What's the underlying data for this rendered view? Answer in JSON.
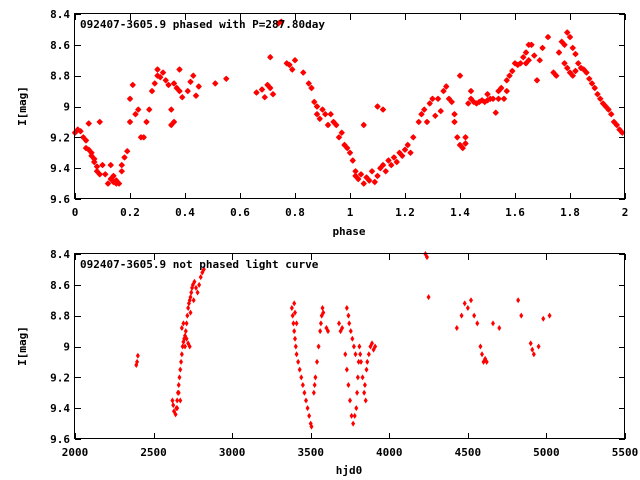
{
  "chart_data": [
    {
      "type": "scatter",
      "title": "092407-3605.9 phased with P=287.80day",
      "xlabel": "phase",
      "ylabel": "I[mag]",
      "xlim": [
        0,
        2
      ],
      "ylim": [
        8.4,
        9.6
      ],
      "y_inverted": true,
      "xticks": [
        "0",
        "0.2",
        "0.4",
        "0.6",
        "0.8",
        "1",
        "1.2",
        "1.4",
        "1.6",
        "1.8",
        "2"
      ],
      "yticks": [
        "8.4",
        "8.6",
        "8.8",
        "9",
        "9.2",
        "9.4",
        "9.6"
      ],
      "marker_color": "#ff0000",
      "marker": "star",
      "points": [
        [
          0.0,
          9.17
        ],
        [
          0.01,
          9.15
        ],
        [
          0.02,
          9.16
        ],
        [
          0.03,
          9.2
        ],
        [
          0.04,
          9.22
        ],
        [
          0.04,
          9.27
        ],
        [
          0.05,
          9.28
        ],
        [
          0.06,
          9.3
        ],
        [
          0.06,
          9.32
        ],
        [
          0.07,
          9.34
        ],
        [
          0.07,
          9.36
        ],
        [
          0.08,
          9.39
        ],
        [
          0.08,
          9.42
        ],
        [
          0.09,
          9.44
        ],
        [
          0.1,
          9.38
        ],
        [
          0.11,
          9.44
        ],
        [
          0.12,
          9.5
        ],
        [
          0.13,
          9.47
        ],
        [
          0.14,
          9.49
        ],
        [
          0.15,
          9.48
        ],
        [
          0.16,
          9.5
        ],
        [
          0.17,
          9.42
        ],
        [
          0.17,
          9.38
        ],
        [
          0.18,
          9.33
        ],
        [
          0.19,
          9.29
        ],
        [
          0.2,
          9.1
        ],
        [
          0.2,
          8.95
        ],
        [
          0.21,
          8.86
        ],
        [
          0.22,
          9.05
        ],
        [
          0.23,
          9.02
        ],
        [
          0.24,
          9.2
        ],
        [
          0.25,
          9.2
        ],
        [
          0.26,
          9.1
        ],
        [
          0.27,
          9.02
        ],
        [
          0.28,
          8.9
        ],
        [
          0.29,
          8.85
        ],
        [
          0.3,
          8.8
        ],
        [
          0.3,
          8.76
        ],
        [
          0.31,
          8.81
        ],
        [
          0.32,
          8.78
        ],
        [
          0.33,
          8.83
        ],
        [
          0.34,
          8.86
        ],
        [
          0.35,
          9.02
        ],
        [
          0.35,
          9.12
        ],
        [
          0.36,
          9.1
        ],
        [
          0.36,
          8.85
        ],
        [
          0.37,
          8.88
        ],
        [
          0.38,
          8.76
        ],
        [
          0.38,
          8.9
        ],
        [
          0.39,
          8.94
        ],
        [
          0.43,
          8.8
        ],
        [
          0.44,
          8.93
        ],
        [
          0.45,
          8.87
        ],
        [
          0.51,
          8.85
        ],
        [
          0.55,
          8.82
        ],
        [
          0.66,
          8.91
        ],
        [
          0.68,
          8.89
        ],
        [
          0.69,
          8.94
        ],
        [
          0.7,
          8.86
        ],
        [
          0.71,
          8.88
        ],
        [
          0.72,
          8.92
        ],
        [
          0.71,
          8.68
        ],
        [
          0.74,
          8.46
        ],
        [
          0.75,
          8.45
        ],
        [
          0.77,
          8.72
        ],
        [
          0.78,
          8.73
        ],
        [
          0.79,
          8.76
        ],
        [
          0.8,
          8.7
        ],
        [
          0.83,
          8.78
        ],
        [
          0.85,
          8.85
        ],
        [
          0.86,
          8.88
        ],
        [
          0.87,
          8.97
        ],
        [
          0.88,
          9.0
        ],
        [
          0.88,
          9.05
        ],
        [
          0.89,
          9.08
        ],
        [
          0.9,
          9.02
        ],
        [
          0.91,
          9.05
        ],
        [
          0.92,
          9.12
        ],
        [
          0.93,
          9.05
        ],
        [
          0.94,
          9.1
        ],
        [
          0.95,
          9.12
        ],
        [
          0.96,
          9.2
        ],
        [
          0.97,
          9.17
        ],
        [
          0.98,
          9.25
        ],
        [
          0.99,
          9.27
        ],
        [
          1.0,
          9.3
        ],
        [
          1.01,
          9.35
        ],
        [
          1.02,
          9.42
        ],
        [
          1.02,
          9.45
        ],
        [
          1.03,
          9.47
        ],
        [
          1.04,
          9.44
        ],
        [
          1.05,
          9.5
        ],
        [
          1.06,
          9.46
        ],
        [
          1.07,
          9.48
        ],
        [
          1.08,
          9.42
        ],
        [
          1.09,
          9.49
        ],
        [
          1.1,
          9.45
        ],
        [
          1.11,
          9.4
        ],
        [
          1.12,
          9.38
        ],
        [
          1.13,
          9.42
        ],
        [
          1.14,
          9.35
        ],
        [
          1.15,
          9.38
        ],
        [
          1.16,
          9.33
        ],
        [
          1.17,
          9.36
        ],
        [
          1.18,
          9.3
        ],
        [
          1.19,
          9.32
        ],
        [
          1.2,
          9.28
        ],
        [
          1.21,
          9.25
        ],
        [
          1.22,
          9.3
        ],
        [
          1.23,
          9.2
        ],
        [
          1.05,
          9.12
        ],
        [
          1.1,
          9.0
        ],
        [
          1.12,
          9.02
        ],
        [
          1.25,
          9.1
        ],
        [
          1.26,
          9.05
        ],
        [
          1.27,
          9.02
        ],
        [
          1.28,
          9.1
        ],
        [
          1.29,
          8.98
        ],
        [
          1.3,
          8.95
        ],
        [
          1.31,
          9.06
        ],
        [
          1.32,
          8.95
        ],
        [
          1.33,
          9.03
        ],
        [
          1.34,
          8.9
        ],
        [
          1.35,
          8.87
        ],
        [
          1.36,
          8.95
        ],
        [
          1.37,
          8.97
        ],
        [
          1.38,
          9.05
        ],
        [
          1.39,
          9.2
        ],
        [
          1.4,
          9.25
        ],
        [
          1.41,
          9.27
        ],
        [
          1.42,
          9.24
        ],
        [
          1.42,
          9.2
        ],
        [
          1.43,
          8.98
        ],
        [
          1.44,
          8.95
        ],
        [
          1.45,
          8.97
        ],
        [
          1.46,
          8.98
        ],
        [
          1.47,
          8.97
        ],
        [
          1.48,
          8.96
        ],
        [
          1.49,
          8.97
        ],
        [
          1.5,
          8.96
        ],
        [
          1.38,
          9.1
        ],
        [
          1.4,
          8.8
        ],
        [
          1.44,
          8.9
        ],
        [
          1.5,
          8.92
        ],
        [
          1.51,
          8.95
        ],
        [
          1.52,
          8.95
        ],
        [
          1.53,
          9.04
        ],
        [
          1.54,
          8.95
        ],
        [
          1.54,
          8.9
        ],
        [
          1.55,
          8.88
        ],
        [
          1.56,
          8.95
        ],
        [
          1.57,
          8.9
        ],
        [
          1.57,
          8.83
        ],
        [
          1.58,
          8.8
        ],
        [
          1.59,
          8.77
        ],
        [
          1.6,
          8.72
        ],
        [
          1.61,
          8.73
        ],
        [
          1.62,
          8.72
        ],
        [
          1.63,
          8.68
        ],
        [
          1.64,
          8.72
        ],
        [
          1.65,
          8.7
        ],
        [
          1.66,
          8.6
        ],
        [
          1.67,
          8.67
        ],
        [
          1.68,
          8.83
        ],
        [
          1.65,
          8.6
        ],
        [
          1.64,
          8.65
        ],
        [
          1.69,
          8.7
        ],
        [
          1.7,
          8.62
        ],
        [
          1.72,
          8.55
        ],
        [
          1.77,
          8.58
        ],
        [
          1.78,
          8.6
        ],
        [
          1.79,
          8.52
        ],
        [
          1.8,
          8.55
        ],
        [
          1.81,
          8.62
        ],
        [
          1.82,
          8.66
        ],
        [
          1.83,
          8.72
        ],
        [
          1.84,
          8.75
        ],
        [
          1.85,
          8.76
        ],
        [
          1.86,
          8.78
        ],
        [
          1.87,
          8.82
        ],
        [
          1.88,
          8.85
        ],
        [
          1.89,
          8.88
        ],
        [
          1.9,
          8.92
        ],
        [
          1.91,
          8.95
        ],
        [
          1.92,
          8.98
        ],
        [
          1.93,
          9.0
        ],
        [
          1.94,
          9.02
        ],
        [
          1.95,
          9.05
        ],
        [
          1.96,
          9.1
        ],
        [
          1.97,
          9.12
        ],
        [
          1.98,
          9.15
        ],
        [
          1.99,
          9.17
        ],
        [
          1.78,
          8.72
        ],
        [
          1.79,
          8.75
        ],
        [
          1.8,
          8.78
        ],
        [
          1.81,
          8.8
        ],
        [
          1.82,
          8.77
        ],
        [
          1.74,
          8.78
        ],
        [
          1.75,
          8.8
        ],
        [
          1.76,
          8.65
        ],
        [
          0.13,
          9.38
        ],
        [
          0.09,
          9.1
        ],
        [
          0.14,
          9.45
        ],
        [
          0.15,
          9.5
        ],
        [
          0.05,
          9.11
        ],
        [
          0.41,
          8.9
        ],
        [
          0.42,
          8.84
        ]
      ]
    },
    {
      "type": "scatter",
      "title": "092407-3605.9 not phased light curve",
      "xlabel": "hjd0",
      "ylabel": "I[mag]",
      "xlim": [
        2000,
        5500
      ],
      "ylim": [
        8.4,
        9.6
      ],
      "y_inverted": true,
      "xticks": [
        "2000",
        "2500",
        "3000",
        "3500",
        "4000",
        "4500",
        "5000",
        "5500"
      ],
      "yticks": [
        "8.4",
        "8.6",
        "8.8",
        "9",
        "9.2",
        "9.4",
        "9.6"
      ],
      "marker_color": "#ff0000",
      "marker": "diamond",
      "points": [
        [
          2390,
          9.12
        ],
        [
          2395,
          9.1
        ],
        [
          2400,
          9.06
        ],
        [
          2620,
          9.35
        ],
        [
          2625,
          9.38
        ],
        [
          2630,
          9.42
        ],
        [
          2640,
          9.44
        ],
        [
          2645,
          9.4
        ],
        [
          2650,
          9.35
        ],
        [
          2655,
          9.3
        ],
        [
          2660,
          9.25
        ],
        [
          2665,
          9.2
        ],
        [
          2670,
          9.15
        ],
        [
          2675,
          9.1
        ],
        [
          2680,
          9.05
        ],
        [
          2685,
          9.0
        ],
        [
          2690,
          8.97
        ],
        [
          2695,
          8.95
        ],
        [
          2700,
          8.93
        ],
        [
          2705,
          8.9
        ],
        [
          2710,
          8.85
        ],
        [
          2715,
          8.8
        ],
        [
          2720,
          8.75
        ],
        [
          2725,
          8.72
        ],
        [
          2730,
          8.7
        ],
        [
          2735,
          8.68
        ],
        [
          2740,
          8.65
        ],
        [
          2745,
          8.62
        ],
        [
          2750,
          8.6
        ],
        [
          2760,
          8.58
        ],
        [
          2770,
          8.62
        ],
        [
          2780,
          8.65
        ],
        [
          2790,
          8.6
        ],
        [
          2800,
          8.55
        ],
        [
          2810,
          8.52
        ],
        [
          2820,
          8.5
        ],
        [
          2700,
          9.0
        ],
        [
          2710,
          8.95
        ],
        [
          2720,
          8.98
        ],
        [
          2730,
          9.0
        ],
        [
          2690,
          8.85
        ],
        [
          2680,
          8.88
        ],
        [
          2660,
          9.3
        ],
        [
          2650,
          9.4
        ],
        [
          2670,
          9.35
        ],
        [
          2735,
          8.78
        ],
        [
          2755,
          8.7
        ],
        [
          3380,
          8.75
        ],
        [
          3385,
          8.8
        ],
        [
          3390,
          8.85
        ],
        [
          3395,
          8.9
        ],
        [
          3400,
          8.95
        ],
        [
          3405,
          9.0
        ],
        [
          3410,
          9.05
        ],
        [
          3420,
          9.1
        ],
        [
          3430,
          9.15
        ],
        [
          3440,
          9.2
        ],
        [
          3450,
          9.25
        ],
        [
          3460,
          9.3
        ],
        [
          3470,
          9.35
        ],
        [
          3480,
          9.4
        ],
        [
          3490,
          9.45
        ],
        [
          3500,
          9.5
        ],
        [
          3505,
          9.52
        ],
        [
          3395,
          8.72
        ],
        [
          3400,
          8.78
        ],
        [
          3410,
          8.85
        ],
        [
          3520,
          9.3
        ],
        [
          3525,
          9.25
        ],
        [
          3530,
          9.2
        ],
        [
          3540,
          9.1
        ],
        [
          3550,
          9.0
        ],
        [
          3560,
          8.9
        ],
        [
          3565,
          8.85
        ],
        [
          3570,
          8.8
        ],
        [
          3575,
          8.75
        ],
        [
          3580,
          8.78
        ],
        [
          3600,
          8.88
        ],
        [
          3610,
          8.9
        ],
        [
          3680,
          8.85
        ],
        [
          3690,
          8.9
        ],
        [
          3700,
          8.88
        ],
        [
          3720,
          9.05
        ],
        [
          3730,
          9.15
        ],
        [
          3740,
          9.25
        ],
        [
          3750,
          9.35
        ],
        [
          3760,
          9.45
        ],
        [
          3770,
          9.5
        ],
        [
          3780,
          9.45
        ],
        [
          3790,
          9.4
        ],
        [
          3795,
          9.3
        ],
        [
          3800,
          9.2
        ],
        [
          3805,
          9.1
        ],
        [
          3810,
          9.0
        ],
        [
          3815,
          9.05
        ],
        [
          3820,
          9.1
        ],
        [
          3830,
          9.2
        ],
        [
          3840,
          9.3
        ],
        [
          3850,
          9.35
        ],
        [
          3845,
          9.25
        ],
        [
          3855,
          9.15
        ],
        [
          3860,
          9.1
        ],
        [
          3870,
          9.05
        ],
        [
          3880,
          9.0
        ],
        [
          3890,
          8.98
        ],
        [
          3900,
          9.02
        ],
        [
          3910,
          9.0
        ],
        [
          3730,
          8.75
        ],
        [
          3740,
          8.8
        ],
        [
          3745,
          8.85
        ],
        [
          3755,
          8.9
        ],
        [
          3765,
          8.95
        ],
        [
          3775,
          9.0
        ],
        [
          3785,
          9.05
        ],
        [
          4230,
          8.4
        ],
        [
          4240,
          8.42
        ],
        [
          4250,
          8.68
        ],
        [
          4430,
          8.88
        ],
        [
          4460,
          8.8
        ],
        [
          4480,
          8.72
        ],
        [
          4500,
          8.75
        ],
        [
          4520,
          8.7
        ],
        [
          4540,
          8.8
        ],
        [
          4560,
          8.85
        ],
        [
          4580,
          9.0
        ],
        [
          4590,
          9.05
        ],
        [
          4600,
          9.1
        ],
        [
          4610,
          9.08
        ],
        [
          4620,
          9.1
        ],
        [
          4660,
          8.85
        ],
        [
          4700,
          8.88
        ],
        [
          4820,
          8.7
        ],
        [
          4840,
          8.8
        ],
        [
          4900,
          8.98
        ],
        [
          4910,
          9.02
        ],
        [
          4920,
          9.05
        ],
        [
          4950,
          9.0
        ],
        [
          4980,
          8.82
        ],
        [
          5020,
          8.8
        ]
      ]
    }
  ]
}
